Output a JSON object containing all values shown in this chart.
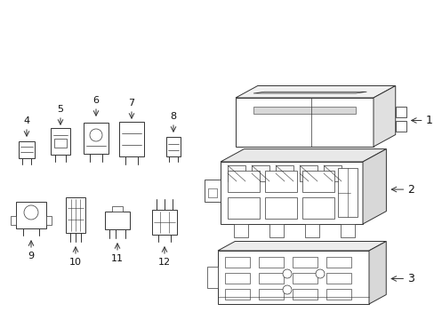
{
  "bg_color": "#ffffff",
  "line_color": "#333333",
  "lw": 0.7,
  "fig_width": 4.89,
  "fig_height": 3.6,
  "dpi": 100
}
